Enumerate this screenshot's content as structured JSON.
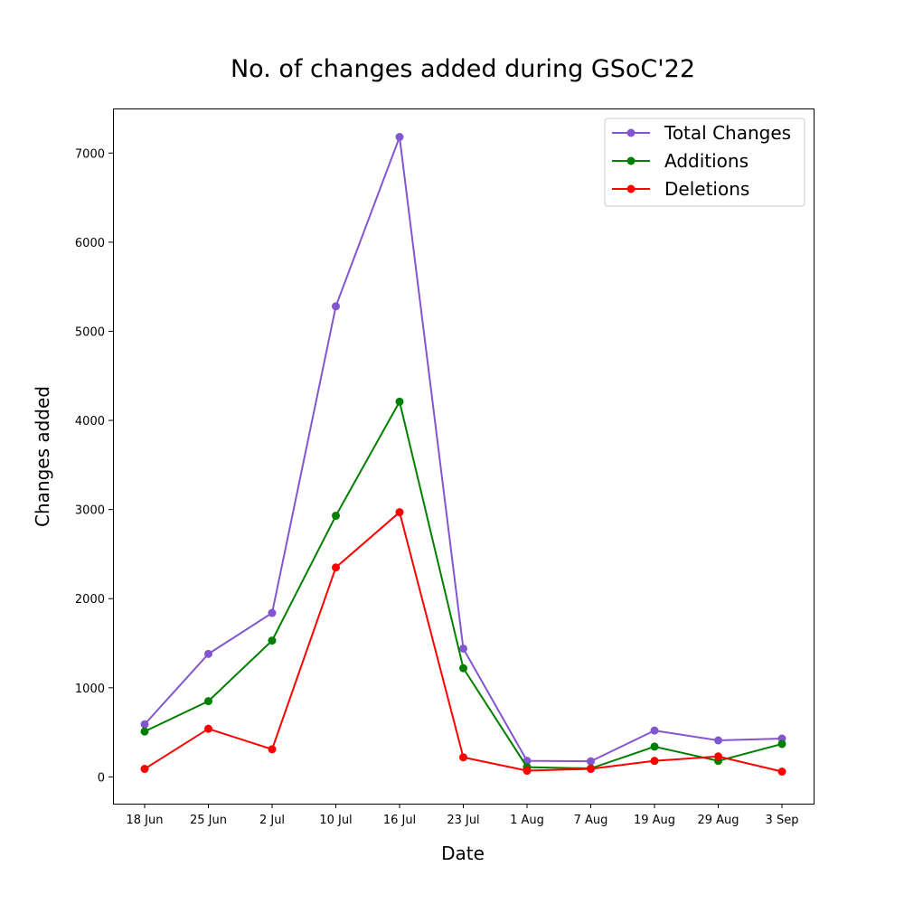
{
  "chart_data": {
    "type": "line",
    "title": "No. of changes added during GSoC'22",
    "xlabel": "Date",
    "ylabel": "Changes added",
    "categories": [
      "18 Jun",
      "25 Jun",
      "2 Jul",
      "10 Jul",
      "16 Jul",
      "23 Jul",
      "1 Aug",
      "7 Aug",
      "19 Aug",
      "29 Aug",
      "3 Sep"
    ],
    "ylim": [
      -300,
      7500
    ],
    "yticks": [
      0,
      1000,
      2000,
      3000,
      4000,
      5000,
      6000,
      7000
    ],
    "grid": false,
    "legend_position": "top-right",
    "series": [
      {
        "name": "Total Changes",
        "color": "#8256d0",
        "values": [
          590,
          1380,
          1840,
          5280,
          7180,
          1440,
          180,
          175,
          520,
          410,
          430
        ]
      },
      {
        "name": "Additions",
        "color": "#008000",
        "values": [
          510,
          850,
          1530,
          2930,
          4210,
          1220,
          110,
          95,
          340,
          180,
          370
        ]
      },
      {
        "name": "Deletions",
        "color": "#ff0000",
        "values": [
          90,
          540,
          310,
          2350,
          2970,
          220,
          70,
          90,
          180,
          230,
          60
        ]
      }
    ]
  }
}
